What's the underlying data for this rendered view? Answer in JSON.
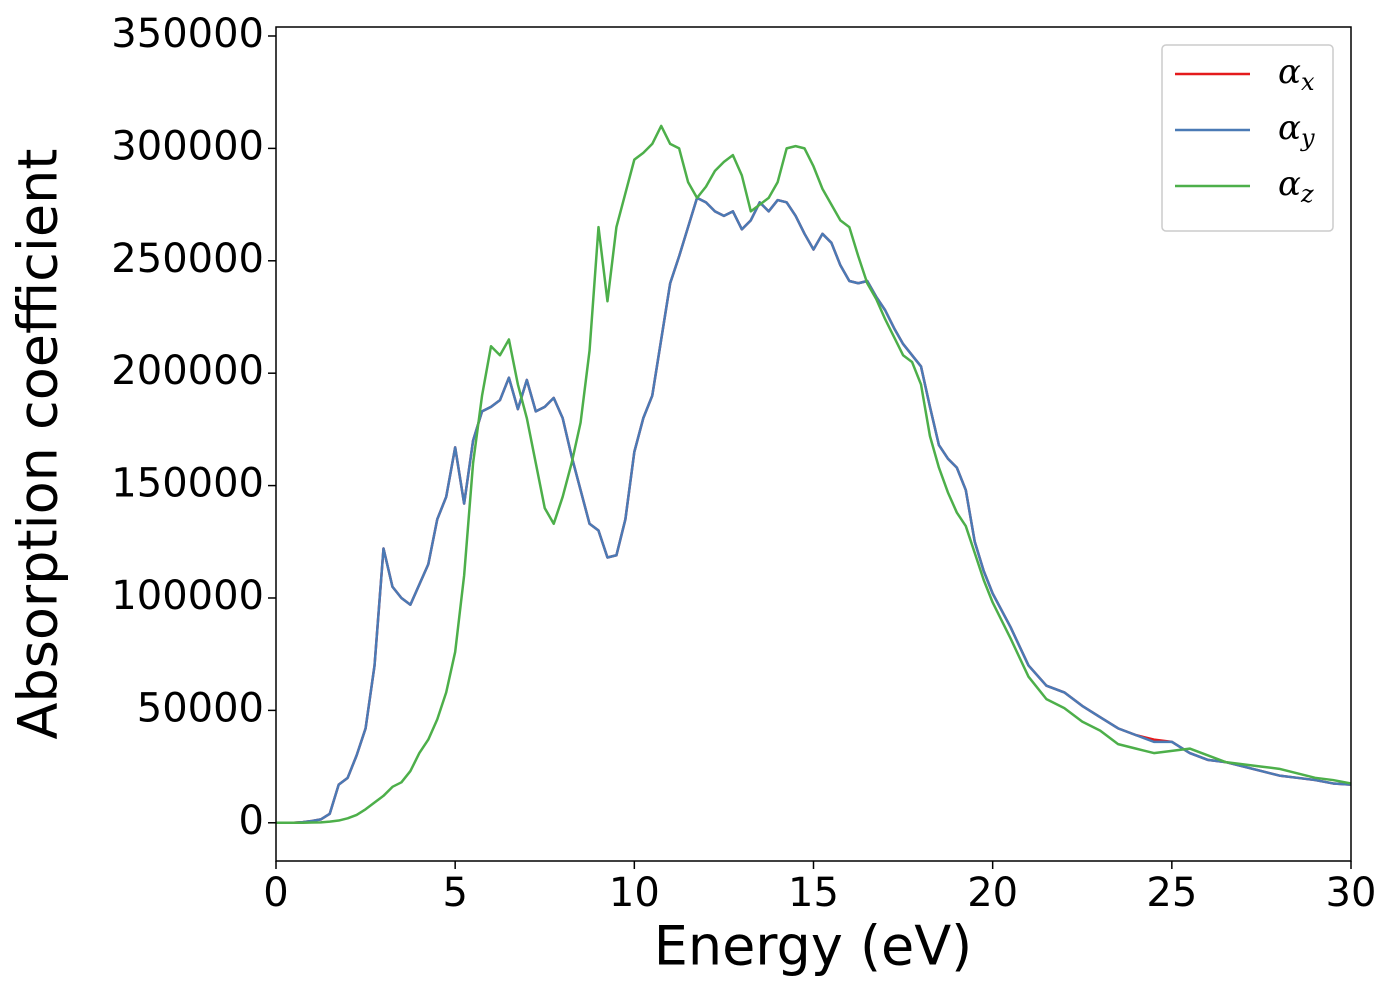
{
  "chart_data": {
    "type": "line",
    "xlabel": "Energy (eV)",
    "ylabel": "Absorption coefficient",
    "x": [
      0,
      0.25,
      0.5,
      0.75,
      1,
      1.25,
      1.5,
      1.75,
      2,
      2.25,
      2.5,
      2.75,
      3,
      3.25,
      3.5,
      3.75,
      4,
      4.25,
      4.5,
      4.75,
      5,
      5.25,
      5.5,
      5.75,
      6,
      6.25,
      6.5,
      6.75,
      7,
      7.25,
      7.5,
      7.75,
      8,
      8.25,
      8.5,
      8.75,
      9,
      9.25,
      9.5,
      9.75,
      10,
      10.25,
      10.5,
      10.75,
      11,
      11.25,
      11.5,
      11.75,
      12,
      12.25,
      12.5,
      12.75,
      13,
      13.25,
      13.5,
      13.75,
      14,
      14.25,
      14.5,
      14.75,
      15,
      15.25,
      15.5,
      15.75,
      16,
      16.25,
      16.5,
      16.75,
      17,
      17.25,
      17.5,
      17.75,
      18,
      18.25,
      18.5,
      18.75,
      19,
      19.25,
      19.5,
      19.75,
      20,
      20.5,
      21,
      21.5,
      22,
      22.5,
      23,
      23.5,
      24,
      24.5,
      25,
      25.5,
      26,
      26.5,
      27,
      27.5,
      28,
      28.5,
      29,
      29.5,
      30
    ],
    "series": [
      {
        "name": "αx",
        "color": "#e41a1c",
        "values": [
          0,
          0,
          0,
          300,
          800,
          1500,
          4000,
          17000,
          20000,
          30000,
          42000,
          70000,
          122000,
          105000,
          100000,
          97000,
          106000,
          115000,
          135000,
          145000,
          167000,
          142000,
          170000,
          183000,
          185000,
          188000,
          198000,
          184000,
          197000,
          183000,
          185000,
          189000,
          180000,
          163000,
          148000,
          133000,
          130000,
          118000,
          119000,
          135000,
          165000,
          180000,
          190000,
          215000,
          240000,
          252000,
          265000,
          278000,
          276000,
          272000,
          270000,
          272000,
          264000,
          268000,
          276000,
          272000,
          277000,
          276000,
          270000,
          262000,
          255000,
          262000,
          258000,
          248000,
          241000,
          240000,
          241000,
          234000,
          228000,
          220000,
          213000,
          208000,
          203000,
          185000,
          168000,
          162000,
          158000,
          148000,
          125000,
          112000,
          102000,
          87000,
          70000,
          61000,
          58000,
          52000,
          47000,
          42000,
          39000,
          37000,
          36000,
          31000,
          28000,
          27000,
          25000,
          23000,
          21000,
          20000,
          19000,
          17500,
          17000
        ]
      },
      {
        "name": "αy",
        "color": "#4a7ab5",
        "values": [
          0,
          0,
          0,
          300,
          800,
          1500,
          4000,
          17000,
          20000,
          30000,
          42000,
          70000,
          122000,
          105000,
          100000,
          97000,
          106000,
          115000,
          135000,
          145000,
          167000,
          142000,
          170000,
          183000,
          185000,
          188000,
          198000,
          184000,
          197000,
          183000,
          185000,
          189000,
          180000,
          163000,
          148000,
          133000,
          130000,
          118000,
          119000,
          135000,
          165000,
          180000,
          190000,
          215000,
          240000,
          252000,
          265000,
          278000,
          276000,
          272000,
          270000,
          272000,
          264000,
          268000,
          276000,
          272000,
          277000,
          276000,
          270000,
          262000,
          255000,
          262000,
          258000,
          248000,
          241000,
          240000,
          241000,
          234000,
          228000,
          220000,
          213000,
          208000,
          203000,
          185000,
          168000,
          162000,
          158000,
          148000,
          125000,
          112000,
          102000,
          87000,
          70000,
          61000,
          58000,
          52000,
          47000,
          42000,
          39000,
          36000,
          36000,
          31000,
          28000,
          27000,
          25000,
          23000,
          21000,
          20000,
          19000,
          17500,
          17000
        ]
      },
      {
        "name": "αz",
        "color": "#4daf4a",
        "values": [
          0,
          0,
          0,
          0,
          100,
          200,
          500,
          1000,
          2000,
          3500,
          6000,
          9000,
          12000,
          16000,
          18000,
          23000,
          31000,
          37000,
          46000,
          58000,
          76000,
          110000,
          160000,
          190000,
          212000,
          208000,
          215000,
          195000,
          180000,
          160000,
          140000,
          133000,
          145000,
          160000,
          178000,
          210000,
          265000,
          232000,
          265000,
          280000,
          295000,
          298000,
          302000,
          310000,
          302000,
          300000,
          285000,
          278000,
          283000,
          290000,
          294000,
          297000,
          288000,
          272000,
          275000,
          278000,
          285000,
          300000,
          301000,
          300000,
          292000,
          282000,
          275000,
          268000,
          265000,
          252000,
          240000,
          233000,
          224000,
          216000,
          208000,
          205000,
          195000,
          172000,
          158000,
          147000,
          138000,
          132000,
          120000,
          108000,
          98000,
          82000,
          65000,
          55000,
          51000,
          45000,
          41000,
          35000,
          33000,
          31000,
          32000,
          33000,
          30000,
          27000,
          26000,
          25000,
          24000,
          22000,
          20000,
          19000,
          17500
        ]
      }
    ],
    "xlim": [
      0,
      30
    ],
    "xticks": [
      0,
      5,
      10,
      15,
      20,
      25,
      30
    ],
    "ylim": [
      -17000,
      354000
    ],
    "yticks": [
      0,
      50000,
      100000,
      150000,
      200000,
      250000,
      300000,
      350000
    ],
    "legend": "upper right",
    "grid": false
  }
}
